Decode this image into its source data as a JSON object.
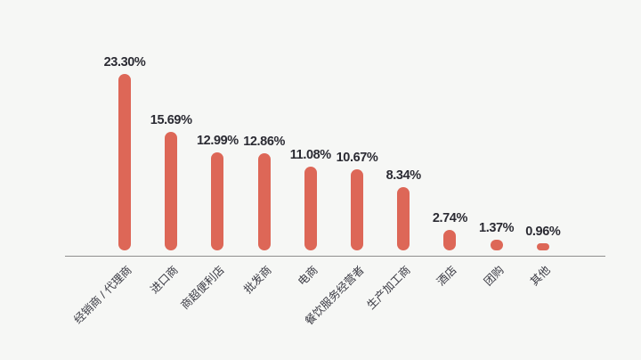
{
  "page": {
    "background": "#f6f7f5"
  },
  "chart_data": {
    "type": "bar",
    "orientation": "vertical",
    "title": "",
    "xlabel": "",
    "ylabel": "",
    "categories": [
      "经销商 / 代理商",
      "进口商",
      "商超便利店",
      "批发商",
      "电商",
      "餐饮服务经营者",
      "生产加工商",
      "酒店",
      "团购",
      "其他"
    ],
    "values": [
      23.3,
      15.69,
      12.99,
      12.86,
      11.08,
      10.67,
      8.34,
      2.74,
      1.37,
      0.96
    ],
    "value_labels": [
      "23.30%",
      "15.69%",
      "12.99%",
      "12.86%",
      "11.08%",
      "10.67%",
      "8.34%",
      "2.74%",
      "1.37%",
      "0.96%"
    ],
    "ylim": [
      0,
      25
    ],
    "grid": false,
    "legend": false,
    "value_label_position": "above-bar",
    "category_label_rotation_deg": -45,
    "bar_color": "#dd6757",
    "value_label_color": "#2b2b33",
    "category_label_color": "#3b3b44",
    "axis_line_color": "#8f8f8f"
  }
}
